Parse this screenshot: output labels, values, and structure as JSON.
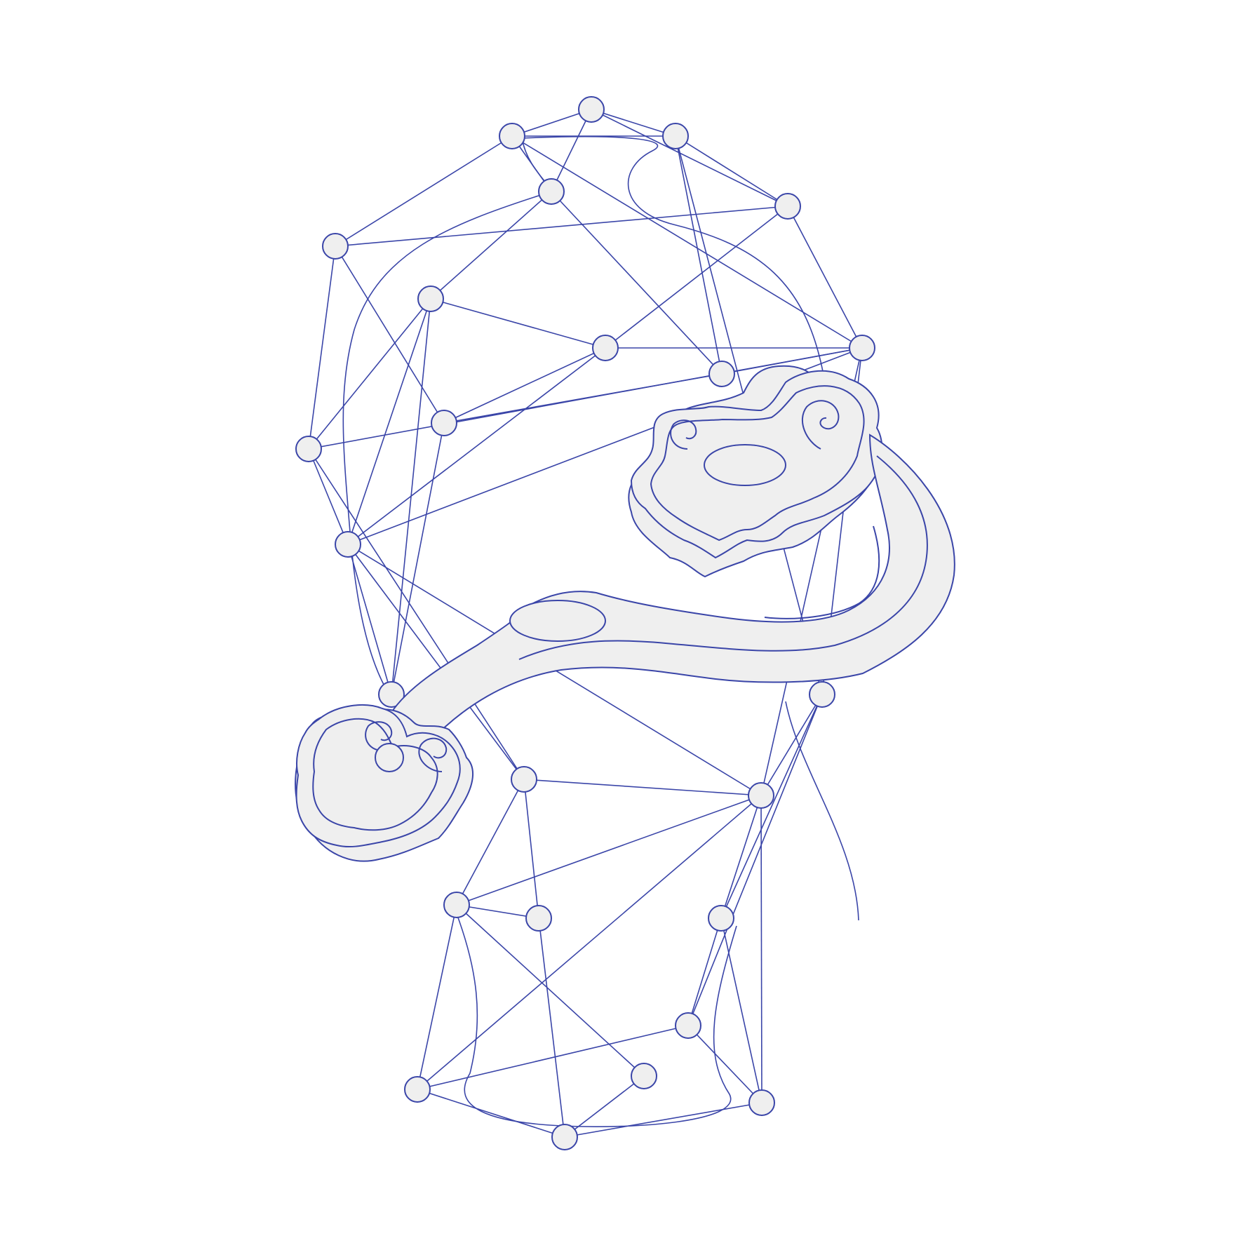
{
  "illustration": {
    "subject": "",
    "colors": {
      "background": "#ffffff",
      "stroke": "#3a45a8",
      "fill": "#efefef"
    }
  }
}
